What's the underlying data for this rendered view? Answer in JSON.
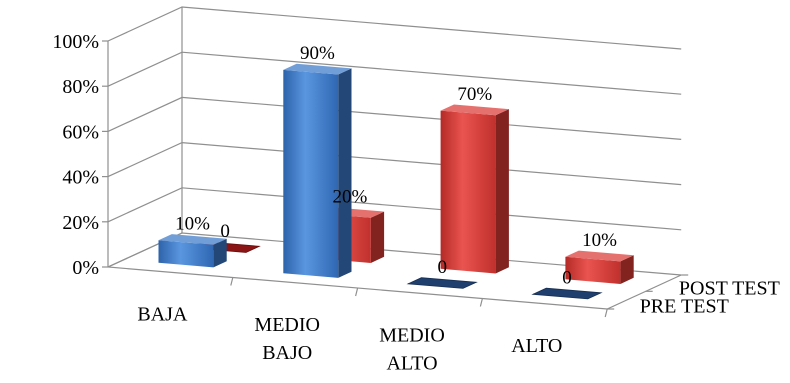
{
  "chart_data": {
    "type": "bar",
    "style": "3d-column",
    "title": "",
    "xlabel": "",
    "ylabel": "",
    "ylim": [
      0,
      100
    ],
    "grid": true,
    "y_ticks": [
      "0%",
      "20%",
      "40%",
      "60%",
      "80%",
      "100%"
    ],
    "categories": [
      "BAJA",
      "MEDIO BAJO",
      "MEDIO ALTO",
      "ALTO"
    ],
    "category_lines": [
      [
        "BAJA"
      ],
      [
        "MEDIO",
        "BAJO"
      ],
      [
        "MEDIO",
        "ALTO"
      ],
      [
        "ALTO"
      ]
    ],
    "series": [
      {
        "name": "PRE TEST",
        "values": [
          10,
          90,
          0,
          0
        ],
        "labels": [
          "10%",
          "90%",
          "0",
          "0"
        ],
        "color": "#3B78C8"
      },
      {
        "name": "POST TEST",
        "values": [
          0,
          20,
          70,
          10
        ],
        "labels": [
          "0",
          "20%",
          "70%",
          "10%"
        ],
        "color": "#D93A35"
      }
    ]
  }
}
